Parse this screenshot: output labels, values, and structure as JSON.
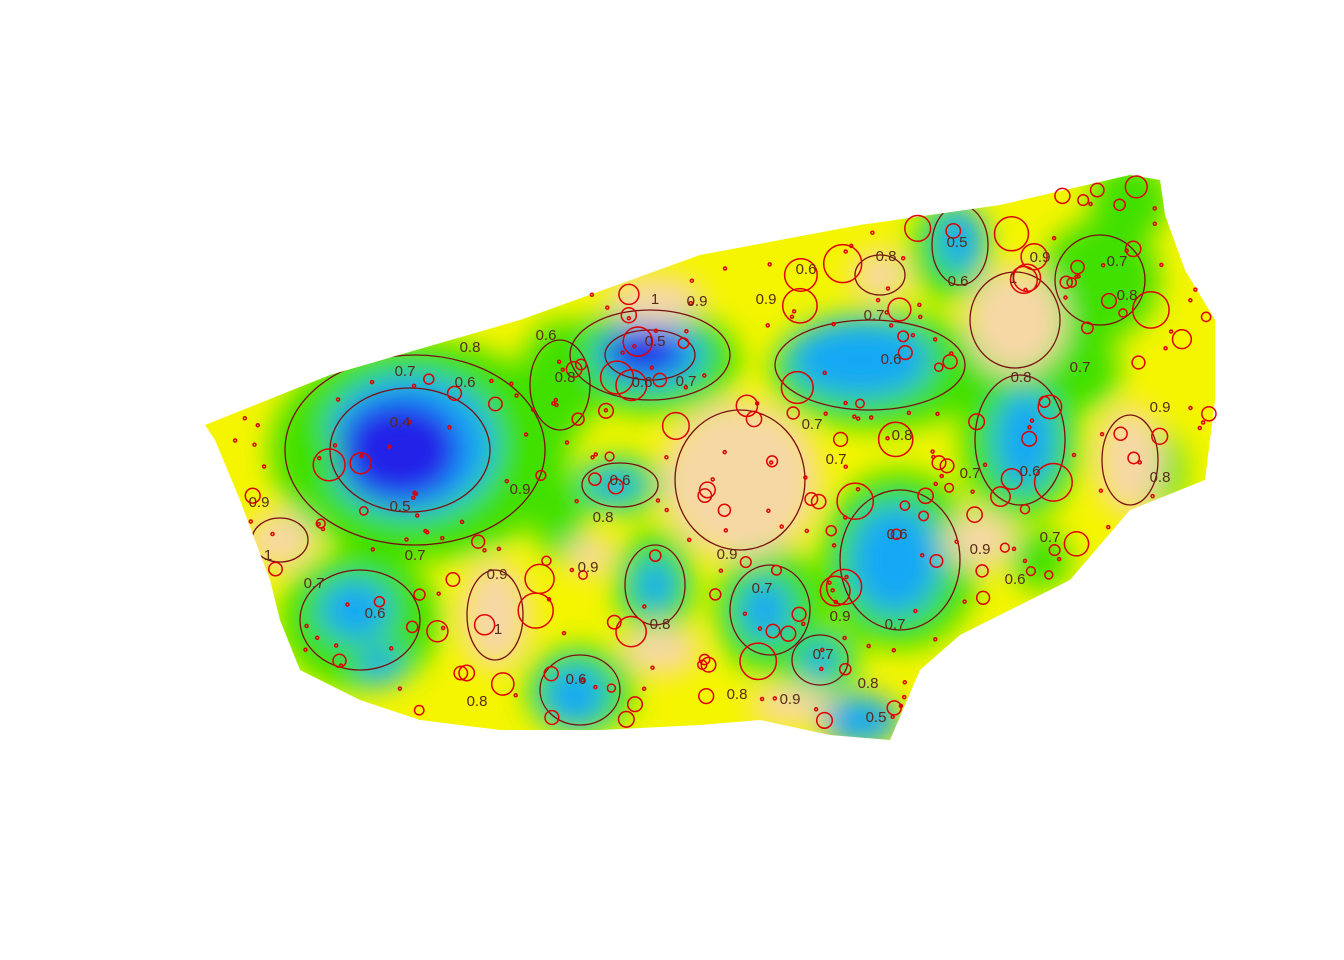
{
  "map": {
    "contour_labels": [
      0.7,
      0.6,
      0.4,
      0.5,
      0.8,
      0.9,
      1,
      0.7,
      0.8,
      0.6,
      0.5,
      0.6,
      0.7,
      1,
      0.9,
      0.9,
      0.6,
      0.8,
      0.7,
      0.6,
      0.5,
      0.6,
      1,
      0.9,
      0.7,
      0.8,
      0.8,
      0.7,
      0.6,
      0.7,
      0.8,
      0.7,
      0.7,
      0.6,
      0.9,
      0.8,
      0.9,
      0.9,
      1,
      0.6,
      0.7,
      0.8,
      0.6,
      0.8,
      0.7,
      0.9,
      0.6,
      0.9,
      0.7,
      0.6,
      0.7,
      0.9,
      0.7,
      0.8,
      0.5,
      0.9,
      0.8,
      0.9,
      0.8
    ]
  }
}
